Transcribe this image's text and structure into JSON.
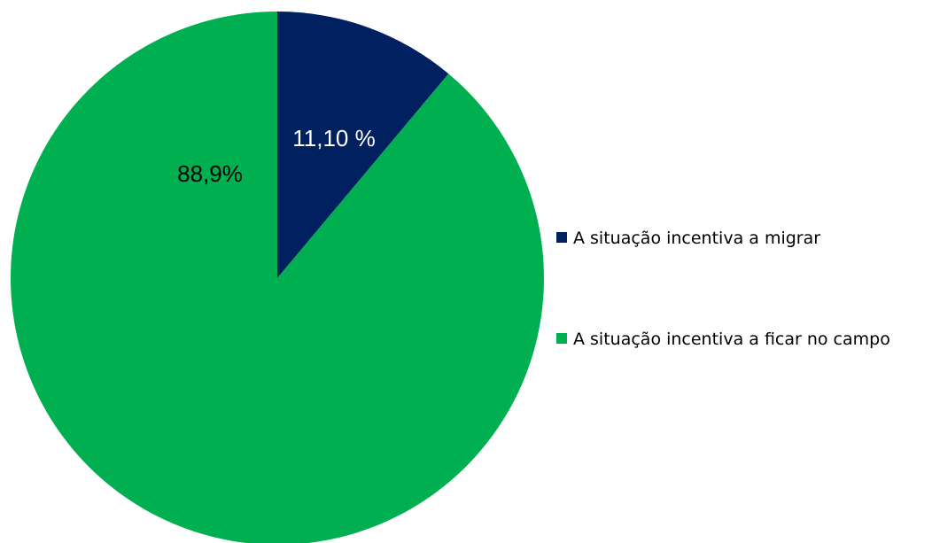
{
  "chart_data": {
    "type": "pie",
    "start_angle_deg": 0,
    "direction": "clockwise",
    "legend_position": "right",
    "slices": [
      {
        "label": "A situação incentiva a migrar",
        "value": 11.1,
        "data_label": "11,10 %",
        "color": "#002060",
        "label_color": "#ffffff"
      },
      {
        "label": "A situação incentiva a ficar no campo",
        "value": 88.9,
        "data_label": "88,9%",
        "color": "#00b050",
        "label_color": "#000000"
      }
    ]
  }
}
